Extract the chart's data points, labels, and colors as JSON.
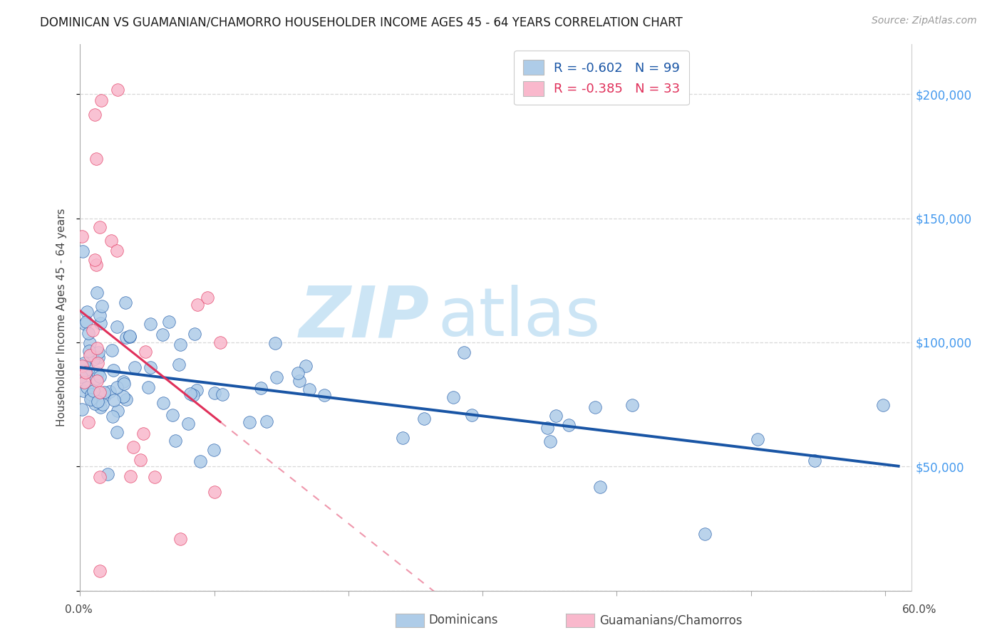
{
  "title": "DOMINICAN VS GUAMANIAN/CHAMORRO HOUSEHOLDER INCOME AGES 45 - 64 YEARS CORRELATION CHART",
  "source": "Source: ZipAtlas.com",
  "ylabel": "Householder Income Ages 45 - 64 years",
  "xlim": [
    0.0,
    0.62
  ],
  "ylim": [
    0,
    220000
  ],
  "yticks": [
    0,
    50000,
    100000,
    150000,
    200000
  ],
  "ytick_labels": [
    "",
    "$50,000",
    "$100,000",
    "$150,000",
    "$200,000"
  ],
  "xtick_left_label": "0.0%",
  "xtick_right_label": "60.0%",
  "legend_line1": "R = -0.602   N = 99",
  "legend_line2": "R = -0.385   N = 33",
  "dominican_color": "#aecce8",
  "guamanian_color": "#f9b8cc",
  "trendline_dominican_color": "#1955a5",
  "trendline_guamanian_color": "#e0305a",
  "ytick_color": "#4499ee",
  "watermark_zip": "ZIP",
  "watermark_atlas": "atlas",
  "background_color": "#ffffff",
  "grid_color": "#d8d8d8",
  "title_color": "#1a1a1a",
  "source_color": "#999999",
  "label_color": "#444444",
  "dom_trend_intercept": 90000,
  "dom_trend_slope": -75000,
  "gua_trend_intercept": 112000,
  "gua_trend_slope": -600000
}
